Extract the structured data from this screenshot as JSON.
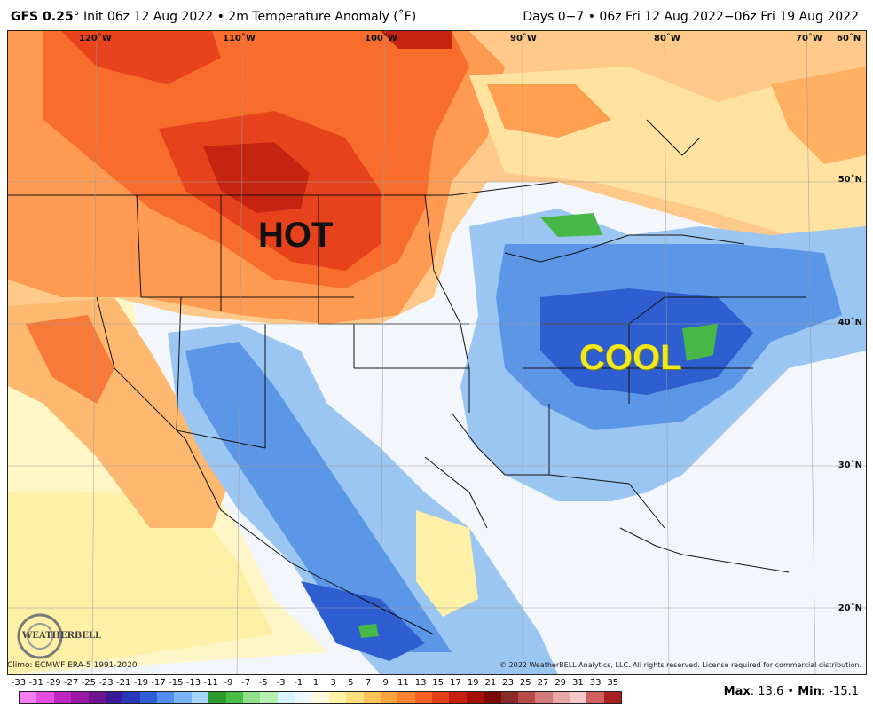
{
  "header": {
    "model": "GFS 0.25",
    "title_rest": "° Init 06z 12 Aug 2022 • 2m Temperature Anomaly (˚F)",
    "right": "Days 0−7 • 06z Fri 12 Aug 2022−06z Fri 19 Aug 2022"
  },
  "map": {
    "longitudes": [
      {
        "label": "120˚W"
      },
      {
        "label": "110˚W"
      },
      {
        "label": "100˚W"
      },
      {
        "label": "90˚W"
      },
      {
        "label": "80˚W"
      },
      {
        "label": "70˚W"
      },
      {
        "label": "60˚N"
      }
    ],
    "latitudes": [
      {
        "label": "50˚N"
      },
      {
        "label": "40˚N"
      },
      {
        "label": "30˚N"
      },
      {
        "label": "20˚N"
      }
    ],
    "annotations": {
      "hot": "HOT",
      "cool": "COOL"
    },
    "logo_text": "WEATHERBELL"
  },
  "footer": {
    "climo": "Climo: ECMWF ERA-5 1991-2020",
    "copyright": "© 2022 WeatherBELL Analytics, LLC. All rights reserved. License required for commercial distribution.",
    "max_label": "Max",
    "max_value": "13.6",
    "min_label": "Min",
    "min_value": "-15.1"
  },
  "legend": {
    "ticks": [
      "-33",
      "-31",
      "-29",
      "-27",
      "-25",
      "-23",
      "-21",
      "-19",
      "-17",
      "-15",
      "-13",
      "-11",
      "-9",
      "-7",
      "-5",
      "-3",
      "-1",
      "1",
      "3",
      "5",
      "7",
      "9",
      "11",
      "13",
      "15",
      "17",
      "19",
      "21",
      "23",
      "25",
      "27",
      "29",
      "31",
      "33",
      "35"
    ],
    "colors": [
      "#f47ef2",
      "#e24fe0",
      "#c026c6",
      "#9a1aa8",
      "#6f1590",
      "#3a1a98",
      "#2a36b8",
      "#2f5ed6",
      "#4f8ef0",
      "#7ab4f4",
      "#a8d4fa",
      "#2e9a2e",
      "#45c045",
      "#8fe08a",
      "#b6f0b0",
      "#d8f4ff",
      "#eef8ff",
      "#fffbe0",
      "#fff3a8",
      "#ffe07c",
      "#ffc458",
      "#ffa43e",
      "#ff8430",
      "#f76022",
      "#e23e18",
      "#c81e10",
      "#a50f0a",
      "#7c0a06",
      "#8a2b2b",
      "#b84a4a",
      "#d47a7a",
      "#e8a8a8",
      "#f4c8c8",
      "#d06060",
      "#a82020"
    ]
  },
  "colors": {
    "hot": "#e8501e",
    "cool": "#3a7ee0",
    "warm": "#ffc06a",
    "land_neutral": "#f3f6fb"
  }
}
